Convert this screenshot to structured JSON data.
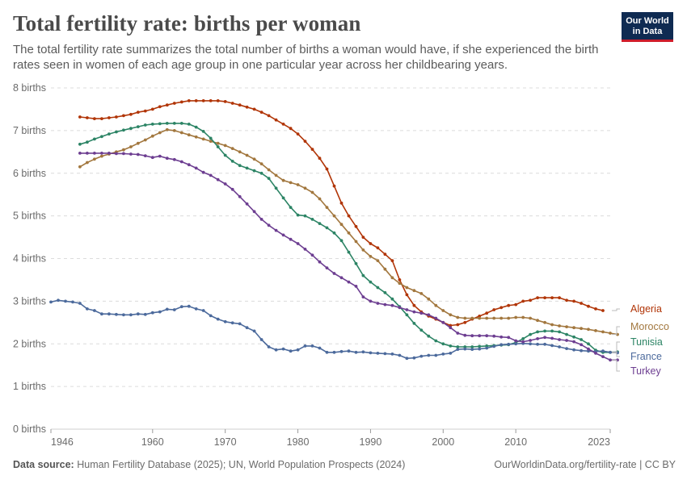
{
  "header": {
    "title": "Total fertility rate: births per woman",
    "subtitle": "The total fertility rate summarizes the total number of births a woman would have, if she experienced the birth rates seen in women of each age group in one particular year across her childbearing years.",
    "logo_line1": "Our World",
    "logo_line2": "in Data"
  },
  "footer": {
    "source_label": "Data source:",
    "source_text": "Human Fertility Database (2025); UN, World Population Prospects (2024)",
    "credit": "OurWorldinData.org/fertility-rate | CC BY"
  },
  "colors": {
    "Algeria": "#b13507",
    "Morocco": "#a2773e",
    "Tunisia": "#2c8465",
    "France": "#4c6a9c",
    "Turkey": "#6d3e91"
  },
  "chart_data": {
    "type": "line",
    "title": "Total fertility rate: births per woman",
    "xlim": [
      1946,
      2023
    ],
    "ylim": [
      0,
      8
    ],
    "x_ticks": [
      "1946",
      "1960",
      "1970",
      "1980",
      "1990",
      "2000",
      "2010",
      "2023"
    ],
    "y_ticks": [
      "0 births",
      "1 births",
      "2 births",
      "3 births",
      "4 births",
      "5 births",
      "6 births",
      "7 births",
      "8 births"
    ],
    "grid": true,
    "legend": "right end labels",
    "series": [
      {
        "name": "Algeria",
        "start": 1950,
        "values": [
          7.32,
          7.3,
          7.28,
          7.28,
          7.3,
          7.32,
          7.35,
          7.38,
          7.43,
          7.46,
          7.5,
          7.56,
          7.6,
          7.64,
          7.67,
          7.7,
          7.7,
          7.7,
          7.7,
          7.7,
          7.68,
          7.64,
          7.6,
          7.55,
          7.5,
          7.43,
          7.35,
          7.25,
          7.15,
          7.05,
          6.92,
          6.75,
          6.56,
          6.35,
          6.1,
          5.7,
          5.3,
          5.0,
          4.75,
          4.5,
          4.35,
          4.25,
          4.1,
          3.95,
          3.5,
          3.15,
          2.9,
          2.75,
          2.65,
          2.58,
          2.5,
          2.43,
          2.45,
          2.5,
          2.58,
          2.65,
          2.72,
          2.8,
          2.85,
          2.9,
          2.92,
          3.0,
          3.02,
          3.08,
          3.08,
          3.08,
          3.08,
          3.02,
          3.0,
          2.95,
          2.88,
          2.82,
          2.78
        ]
      },
      {
        "name": "Morocco",
        "start": 1950,
        "values": [
          6.15,
          6.25,
          6.33,
          6.4,
          6.45,
          6.5,
          6.55,
          6.62,
          6.7,
          6.78,
          6.87,
          6.95,
          7.02,
          7.0,
          6.95,
          6.9,
          6.85,
          6.8,
          6.75,
          6.7,
          6.65,
          6.58,
          6.5,
          6.42,
          6.33,
          6.22,
          6.08,
          5.95,
          5.83,
          5.78,
          5.73,
          5.65,
          5.55,
          5.4,
          5.2,
          5.0,
          4.8,
          4.6,
          4.4,
          4.2,
          4.05,
          3.95,
          3.75,
          3.55,
          3.42,
          3.32,
          3.25,
          3.18,
          3.05,
          2.9,
          2.78,
          2.68,
          2.62,
          2.6,
          2.6,
          2.6,
          2.6,
          2.6,
          2.6,
          2.6,
          2.62,
          2.62,
          2.6,
          2.55,
          2.5,
          2.45,
          2.42,
          2.4,
          2.38,
          2.36,
          2.34,
          2.31,
          2.28,
          2.25,
          2.22
        ]
      },
      {
        "name": "Tunisia",
        "start": 1950,
        "values": [
          6.68,
          6.73,
          6.8,
          6.86,
          6.92,
          6.97,
          7.01,
          7.05,
          7.09,
          7.13,
          7.15,
          7.16,
          7.17,
          7.17,
          7.17,
          7.15,
          7.08,
          6.98,
          6.82,
          6.62,
          6.42,
          6.28,
          6.18,
          6.12,
          6.06,
          6.0,
          5.88,
          5.65,
          5.42,
          5.2,
          5.02,
          5.0,
          4.92,
          4.82,
          4.72,
          4.6,
          4.42,
          4.15,
          3.88,
          3.6,
          3.45,
          3.32,
          3.2,
          3.05,
          2.87,
          2.68,
          2.48,
          2.32,
          2.18,
          2.07,
          2.0,
          1.95,
          1.93,
          1.93,
          1.93,
          1.94,
          1.95,
          1.96,
          1.97,
          1.98,
          2.03,
          2.12,
          2.22,
          2.28,
          2.3,
          2.3,
          2.28,
          2.22,
          2.16,
          2.1,
          2.0,
          1.85,
          1.8,
          1.8,
          1.81
        ]
      },
      {
        "name": "France",
        "start": 1946,
        "values": [
          2.98,
          3.02,
          3.0,
          2.98,
          2.95,
          2.82,
          2.78,
          2.7,
          2.7,
          2.69,
          2.68,
          2.68,
          2.7,
          2.69,
          2.73,
          2.75,
          2.81,
          2.8,
          2.87,
          2.88,
          2.82,
          2.78,
          2.66,
          2.58,
          2.52,
          2.49,
          2.47,
          2.38,
          2.3,
          2.1,
          1.93,
          1.86,
          1.88,
          1.83,
          1.86,
          1.95,
          1.95,
          1.9,
          1.8,
          1.8,
          1.82,
          1.83,
          1.8,
          1.81,
          1.79,
          1.78,
          1.77,
          1.76,
          1.73,
          1.66,
          1.67,
          1.71,
          1.73,
          1.73,
          1.76,
          1.78,
          1.87,
          1.88,
          1.87,
          1.88,
          1.9,
          1.94,
          1.98,
          1.99,
          2.0,
          2.01,
          2.0,
          1.99,
          1.99,
          1.96,
          1.93,
          1.89,
          1.86,
          1.84,
          1.83,
          1.82,
          1.83,
          1.8,
          1.79
        ]
      },
      {
        "name": "Turkey",
        "start": 1950,
        "values": [
          6.47,
          6.47,
          6.47,
          6.47,
          6.47,
          6.46,
          6.46,
          6.45,
          6.44,
          6.41,
          6.37,
          6.4,
          6.35,
          6.32,
          6.27,
          6.2,
          6.12,
          6.02,
          5.95,
          5.85,
          5.75,
          5.62,
          5.45,
          5.28,
          5.1,
          4.92,
          4.78,
          4.66,
          4.55,
          4.45,
          4.35,
          4.22,
          4.08,
          3.92,
          3.78,
          3.65,
          3.55,
          3.45,
          3.35,
          3.1,
          3.0,
          2.95,
          2.92,
          2.9,
          2.85,
          2.8,
          2.75,
          2.72,
          2.68,
          2.6,
          2.5,
          2.38,
          2.25,
          2.2,
          2.19,
          2.19,
          2.19,
          2.18,
          2.16,
          2.15,
          2.07,
          2.05,
          2.08,
          2.12,
          2.15,
          2.13,
          2.1,
          2.08,
          2.05,
          1.98,
          1.88,
          1.78,
          1.7,
          1.62,
          1.62
        ]
      }
    ]
  }
}
